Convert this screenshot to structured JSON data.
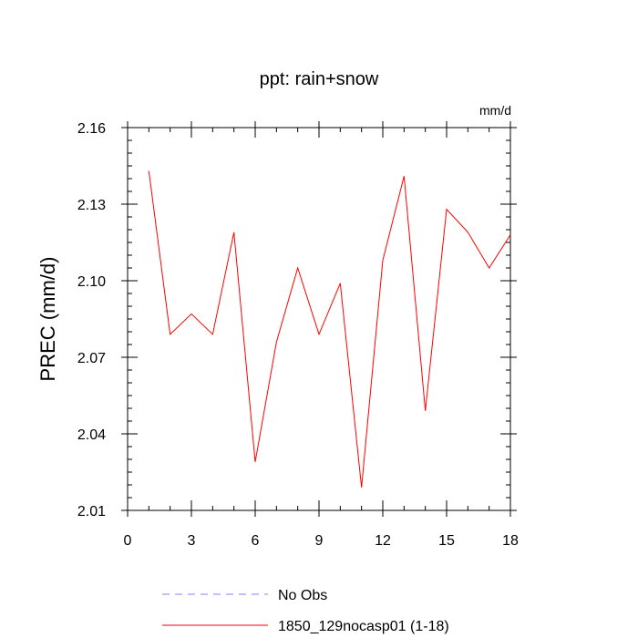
{
  "chart_data": {
    "type": "line",
    "title": "ppt: rain+snow",
    "units_label": "mm/d",
    "xlabel": "",
    "ylabel": "PREC  (mm/d)",
    "xlim": [
      0,
      18
    ],
    "ylim": [
      2.01,
      2.16
    ],
    "x_ticks": [
      "0",
      "3",
      "6",
      "9",
      "12",
      "15",
      "18"
    ],
    "y_ticks": [
      "2.01",
      "2.04",
      "2.07",
      "2.10",
      "2.13",
      "2.16"
    ],
    "grid": false,
    "legend_position": "bottom",
    "series": [
      {
        "name": "No Obs",
        "color": "#8080ff",
        "style": "dashed",
        "x": [],
        "values": []
      },
      {
        "name": "1850_129nocasp01 (1-18)",
        "color": "#ff0000",
        "style": "solid",
        "x": [
          1,
          2,
          3,
          4,
          5,
          6,
          7,
          8,
          9,
          10,
          11,
          12,
          13,
          14,
          15,
          16,
          17,
          18
        ],
        "values": [
          2.143,
          2.079,
          2.087,
          2.079,
          2.119,
          2.029,
          2.076,
          2.105,
          2.079,
          2.099,
          2.019,
          2.108,
          2.141,
          2.049,
          2.128,
          2.119,
          2.105,
          2.118
        ]
      }
    ]
  }
}
